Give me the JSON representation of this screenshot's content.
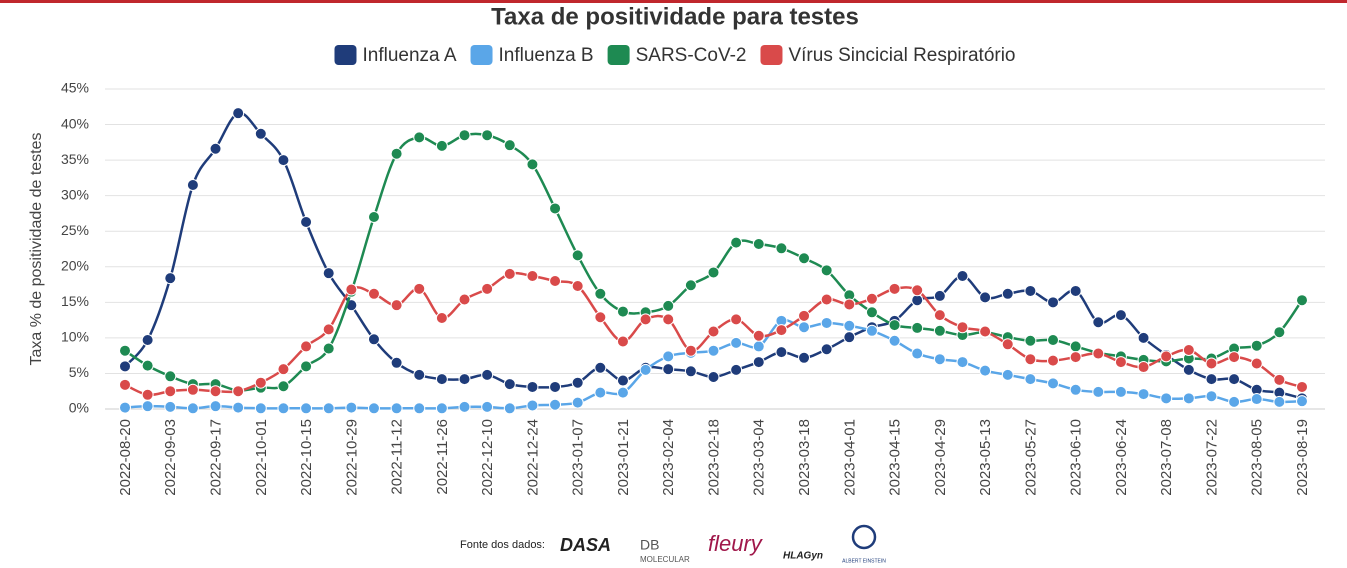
{
  "chart_data": {
    "type": "line",
    "title": "Taxa de positividade para testes",
    "y_label": "Taxa % de positividade de testes",
    "categories": [
      "2022-08-20",
      null,
      "2022-09-03",
      null,
      "2022-09-17",
      null,
      "2022-10-01",
      null,
      "2022-10-15",
      null,
      "2022-10-29",
      null,
      "2022-11-12",
      null,
      "2022-11-26",
      null,
      "2022-12-10",
      null,
      "2022-12-24",
      null,
      "2023-01-07",
      null,
      "2023-01-21",
      null,
      "2023-02-04",
      null,
      "2023-02-18",
      null,
      "2023-03-04",
      null,
      "2023-03-18",
      null,
      "2023-04-01",
      null,
      "2023-04-15",
      null,
      "2023-04-29",
      null,
      "2023-05-13",
      null,
      "2023-05-27",
      null,
      "2023-06-10",
      null,
      "2023-06-24",
      null,
      "2023-07-08",
      null,
      "2023-07-22",
      null,
      "2023-08-05",
      null,
      "2023-08-19"
    ],
    "series": [
      {
        "name": "Influenza A",
        "color": "#1f3c7a",
        "values": [
          6.0,
          9.7,
          18.4,
          31.5,
          36.6,
          41.6,
          38.7,
          35.0,
          26.3,
          19.1,
          14.6,
          9.8,
          6.5,
          4.8,
          4.2,
          4.2,
          4.8,
          3.5,
          3.1,
          3.1,
          3.7,
          5.8,
          4.0,
          5.8,
          5.6,
          5.3,
          4.5,
          5.5,
          6.6,
          8.0,
          7.2,
          8.4,
          10.1,
          11.5,
          12.4,
          15.3,
          15.9,
          18.7,
          15.7,
          16.2,
          16.6,
          15.0,
          16.6,
          12.2,
          13.2,
          10.0,
          7.6,
          5.5,
          4.2,
          4.2,
          2.7,
          2.3,
          1.5
        ]
      },
      {
        "name": "Influenza B",
        "color": "#5aa6e8",
        "values": [
          0.2,
          0.4,
          0.3,
          0.1,
          0.4,
          0.2,
          0.1,
          0.1,
          0.1,
          0.1,
          0.2,
          0.1,
          0.1,
          0.1,
          0.1,
          0.3,
          0.3,
          0.1,
          0.5,
          0.6,
          0.9,
          2.3,
          2.3,
          5.5,
          7.4,
          7.9,
          8.2,
          9.3,
          8.8,
          12.4,
          11.5,
          12.1,
          11.7,
          11.0,
          9.6,
          7.8,
          7.0,
          6.6,
          5.4,
          4.8,
          4.2,
          3.6,
          2.7,
          2.4,
          2.4,
          2.1,
          1.5,
          1.5,
          1.8,
          1.0,
          1.4,
          1.0,
          1.1
        ]
      },
      {
        "name": "SARS-CoV-2",
        "color": "#1e8a52",
        "values": [
          8.2,
          6.1,
          4.6,
          3.5,
          3.5,
          2.6,
          3.0,
          3.2,
          6.0,
          8.5,
          16.5,
          27.0,
          35.9,
          38.2,
          37.0,
          38.5,
          38.5,
          37.1,
          34.4,
          28.2,
          21.6,
          16.2,
          13.7,
          13.6,
          14.5,
          17.4,
          19.2,
          23.4,
          23.2,
          22.6,
          21.2,
          19.5,
          16.0,
          13.6,
          11.8,
          11.4,
          11.0,
          10.4,
          10.8,
          10.1,
          9.6,
          9.7,
          8.8,
          7.9,
          7.4,
          6.9,
          6.7,
          7.1,
          7.1,
          8.5,
          8.9,
          10.8,
          15.3
        ]
      },
      {
        "name": "Vírus Sincicial Respiratório",
        "color": "#d94a4a",
        "values": [
          3.4,
          2.0,
          2.5,
          2.7,
          2.5,
          2.5,
          3.7,
          5.6,
          8.8,
          11.2,
          16.8,
          16.2,
          14.6,
          16.9,
          12.8,
          15.4,
          16.9,
          19.0,
          18.7,
          18.0,
          17.3,
          12.9,
          9.5,
          12.6,
          12.6,
          8.2,
          10.9,
          12.6,
          10.3,
          11.1,
          13.1,
          15.4,
          14.7,
          15.5,
          16.9,
          16.7,
          13.2,
          11.5,
          10.9,
          9.1,
          7.0,
          6.8,
          7.3,
          7.8,
          6.6,
          5.9,
          7.4,
          8.3,
          6.4,
          7.3,
          6.4,
          4.1,
          3.1
        ]
      }
    ],
    "ylim": [
      0,
      45
    ],
    "yticks": [
      {
        "value": 0,
        "label": "0%"
      },
      {
        "value": 5,
        "label": "5%"
      },
      {
        "value": 10,
        "label": "10%"
      },
      {
        "value": 15,
        "label": "15%"
      },
      {
        "value": 20,
        "label": "20%"
      },
      {
        "value": 25,
        "label": "25%"
      },
      {
        "value": 30,
        "label": "30%"
      },
      {
        "value": 35,
        "label": "35%"
      },
      {
        "value": 40,
        "label": "40%"
      },
      {
        "value": 45,
        "label": "45%"
      }
    ],
    "grid": true,
    "legend": "top"
  },
  "footer": {
    "source": "Fonte dos dados:",
    "logos": [
      "DASA",
      "DB",
      "MOLECULAR",
      "fleury",
      "HLAGyn",
      "ALBERT EINSTEIN"
    ]
  }
}
